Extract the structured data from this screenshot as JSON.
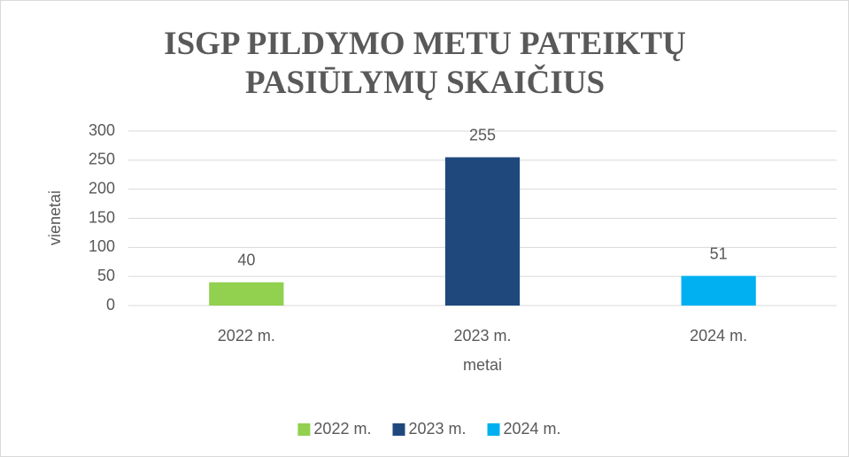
{
  "chart_data": {
    "type": "bar",
    "title": "ISGP PILDYMO METU PATEIKTŲ PASIŪLYMŲ SKAIČIUS",
    "categories": [
      "2022 m.",
      "2023 m.",
      "2024 m."
    ],
    "values": [
      40,
      255,
      51
    ],
    "colors": [
      "#92d050",
      "#1f497d",
      "#00b0f0"
    ],
    "x_label": "metai",
    "y_label": "vienetai",
    "ylim": [
      0,
      300
    ],
    "yticks": [
      0,
      50,
      100,
      150,
      200,
      250,
      300
    ],
    "grid": true,
    "legend": "bottom"
  }
}
